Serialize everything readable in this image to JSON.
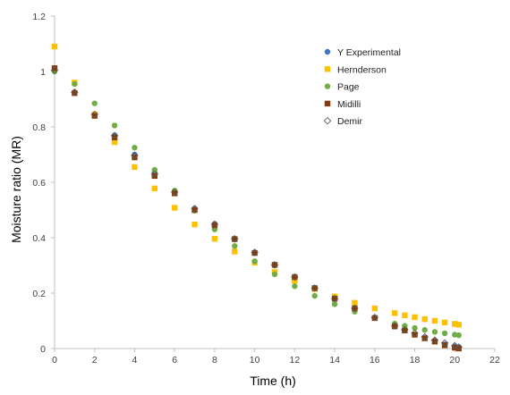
{
  "chart_data": {
    "type": "scatter",
    "xlabel": "Time (h)",
    "ylabel": "Moisture ratio (MR)",
    "xlim": [
      0,
      22
    ],
    "ylim": [
      0,
      1.2
    ],
    "x_ticks": [
      0,
      2,
      4,
      6,
      8,
      10,
      12,
      14,
      16,
      18,
      20,
      22
    ],
    "x_tick_labels": [
      "0",
      "2",
      "4",
      "6",
      "8",
      "10",
      "12",
      "14",
      "16",
      "18",
      "20",
      "22"
    ],
    "y_ticks": [
      0,
      0.2,
      0.4,
      0.6,
      0.8,
      1,
      1.2
    ],
    "y_tick_labels": [
      "0",
      "0.2",
      "0.4",
      "0.6",
      "0.8",
      "1",
      "1.2"
    ],
    "grid": false,
    "legend_position": "right",
    "series": [
      {
        "name": "Y Experimental",
        "marker": "circle",
        "color": "#4472C4",
        "x": [
          0,
          1,
          2,
          3,
          4,
          5,
          6,
          7,
          8,
          9,
          10,
          11,
          12,
          13,
          14,
          15,
          16,
          17,
          17.5,
          18,
          18.5,
          19,
          19.5,
          20,
          20.2
        ],
        "y": [
          1.0,
          0.925,
          0.845,
          0.77,
          0.7,
          0.635,
          0.565,
          0.505,
          0.45,
          0.395,
          0.345,
          0.3,
          0.255,
          0.215,
          0.18,
          0.145,
          0.11,
          0.08,
          0.065,
          0.05,
          0.038,
          0.028,
          0.015,
          0.008,
          0.005
        ]
      },
      {
        "name": "Hernderson",
        "marker": "square",
        "color": "#FFC000",
        "x": [
          0,
          1,
          2,
          3,
          4,
          5,
          6,
          7,
          8,
          9,
          10,
          11,
          12,
          13,
          14,
          15,
          16,
          17,
          17.5,
          18,
          18.5,
          19,
          19.5,
          20,
          20.2
        ],
        "y": [
          1.09,
          0.96,
          0.845,
          0.745,
          0.655,
          0.578,
          0.508,
          0.448,
          0.396,
          0.35,
          0.31,
          0.276,
          0.245,
          0.215,
          0.188,
          0.165,
          0.145,
          0.128,
          0.12,
          0.113,
          0.106,
          0.1,
          0.094,
          0.089,
          0.086
        ]
      },
      {
        "name": "Page",
        "marker": "circle",
        "color": "#70AD47",
        "x": [
          0,
          1,
          2,
          3,
          4,
          5,
          6,
          7,
          8,
          9,
          10,
          11,
          12,
          13,
          14,
          15,
          16,
          17,
          17.5,
          18,
          18.5,
          19,
          19.5,
          20,
          20.2
        ],
        "y": [
          1.0,
          0.955,
          0.885,
          0.805,
          0.725,
          0.645,
          0.57,
          0.498,
          0.43,
          0.37,
          0.315,
          0.268,
          0.225,
          0.19,
          0.16,
          0.133,
          0.11,
          0.09,
          0.082,
          0.074,
          0.067,
          0.06,
          0.055,
          0.05,
          0.048
        ]
      },
      {
        "name": "Midilli",
        "marker": "square",
        "color": "#843C0C",
        "x": [
          0,
          1,
          2,
          3,
          4,
          5,
          6,
          7,
          8,
          9,
          10,
          11,
          12,
          13,
          14,
          15,
          16,
          17,
          17.5,
          18,
          18.5,
          19,
          19.5,
          20,
          20.2
        ],
        "y": [
          1.012,
          0.922,
          0.84,
          0.762,
          0.69,
          0.623,
          0.56,
          0.5,
          0.445,
          0.395,
          0.345,
          0.302,
          0.258,
          0.218,
          0.18,
          0.145,
          0.11,
          0.08,
          0.065,
          0.05,
          0.037,
          0.025,
          0.012,
          0.003,
          0.0
        ]
      },
      {
        "name": "Demir",
        "marker": "diamond-open",
        "color": "#595959",
        "x": [
          0,
          1,
          2,
          3,
          4,
          5,
          6,
          7,
          8,
          9,
          10,
          11,
          12,
          13,
          14,
          15,
          16,
          17,
          17.5,
          18,
          18.5,
          19,
          19.5,
          20,
          20.2
        ],
        "y": [
          1.005,
          0.925,
          0.845,
          0.768,
          0.697,
          0.63,
          0.565,
          0.505,
          0.448,
          0.396,
          0.347,
          0.302,
          0.258,
          0.218,
          0.18,
          0.145,
          0.112,
          0.082,
          0.068,
          0.055,
          0.042,
          0.03,
          0.02,
          0.01,
          0.005
        ]
      }
    ]
  }
}
